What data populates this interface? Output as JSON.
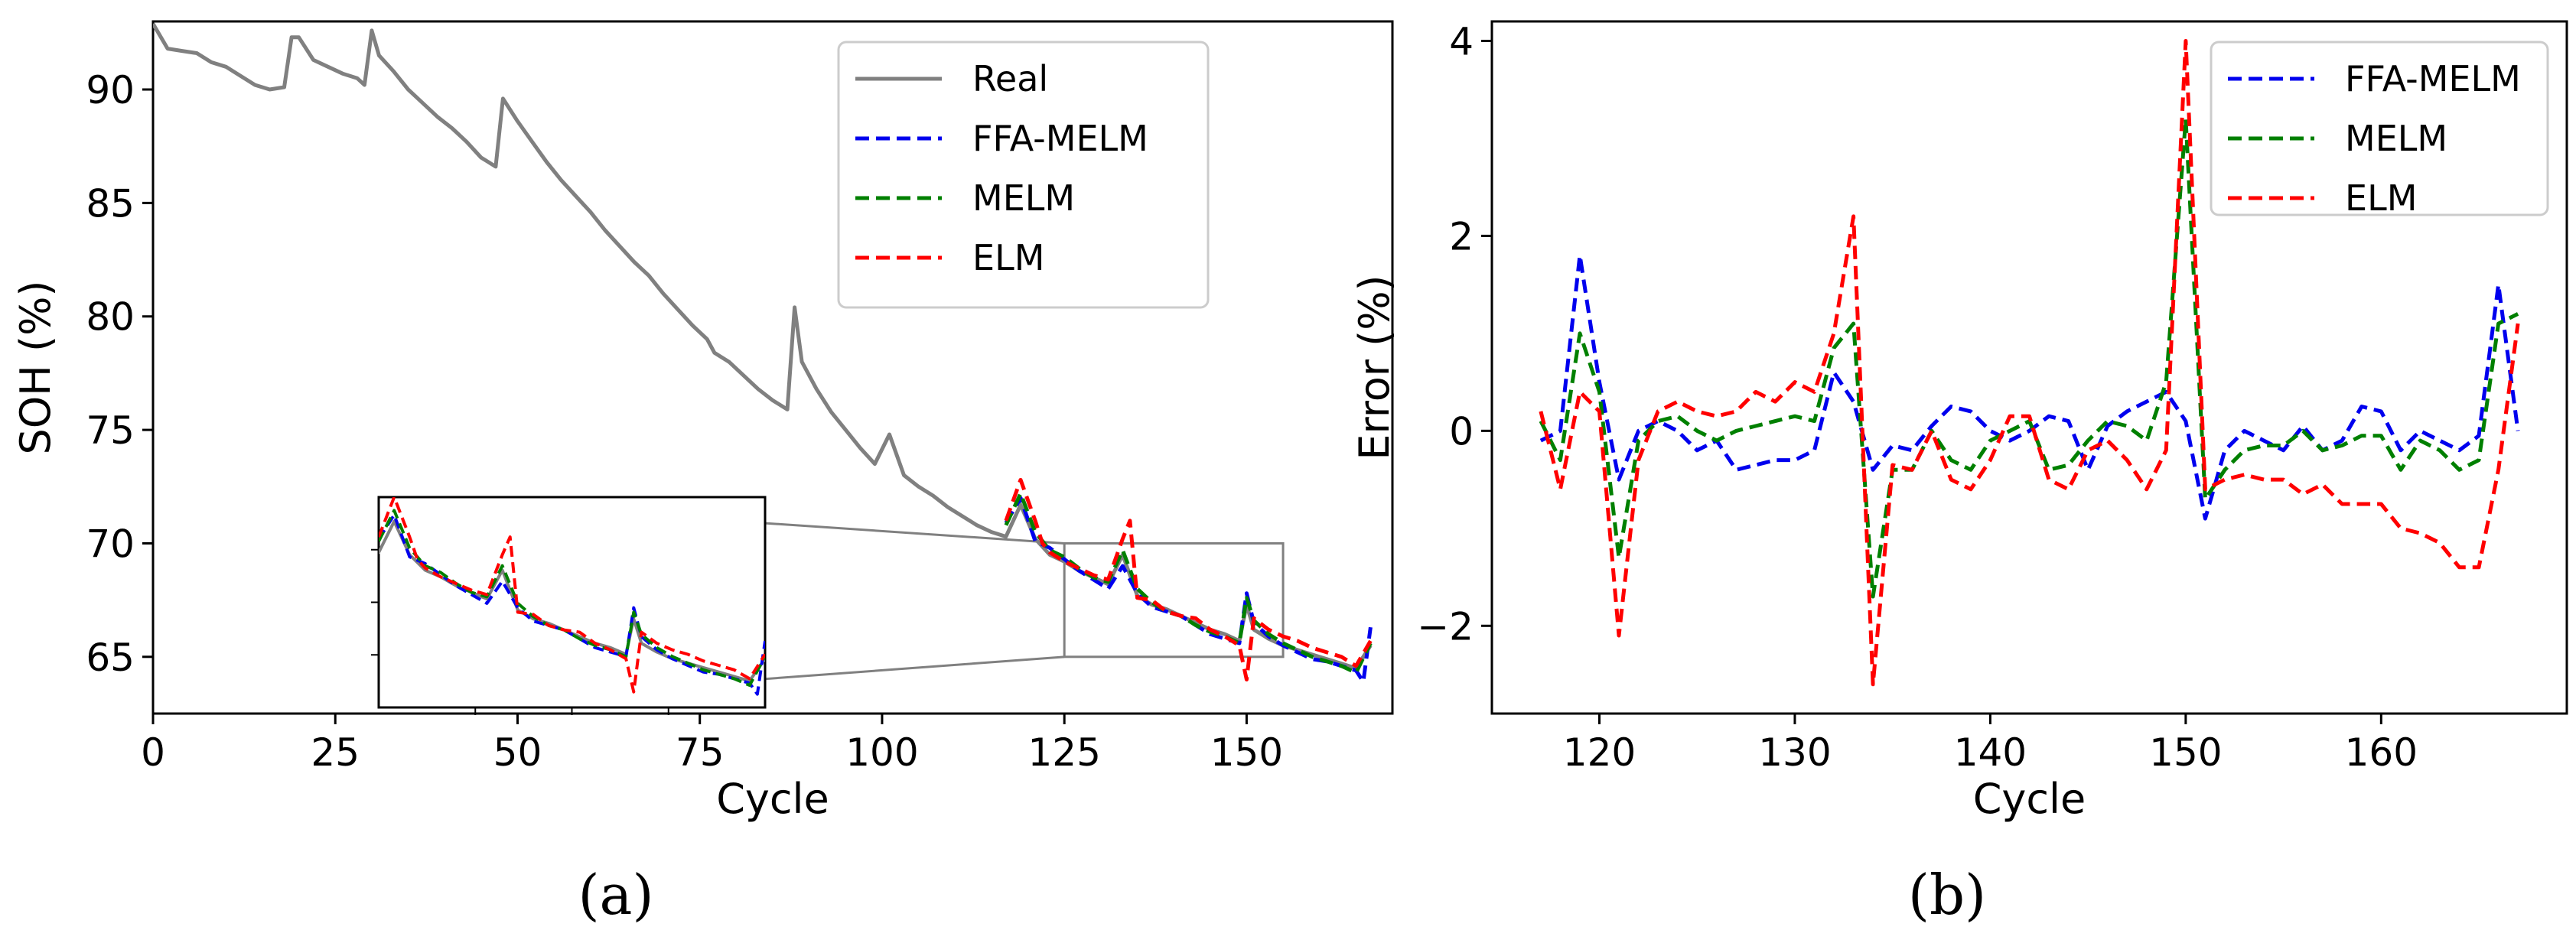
{
  "colors": {
    "real": "#808080",
    "ffa_melm": "#0000ee",
    "melm": "#008000",
    "elm": "#ff0000",
    "axes": "#000000",
    "legend_border": "#cccccc",
    "zoom_box": "#808080"
  },
  "panel_labels": {
    "a": "(a)",
    "b": "(b)"
  },
  "chart_data": [
    {
      "id": "a",
      "type": "line",
      "xlabel": "Cycle",
      "ylabel": "SOH (%)",
      "xlim": [
        0,
        170
      ],
      "ylim": [
        62.5,
        93
      ],
      "xticks": [
        0,
        25,
        50,
        75,
        100,
        125,
        150
      ],
      "xtick_labels": [
        "0",
        "25",
        "50",
        "75",
        "100",
        "125",
        "150"
      ],
      "yticks": [
        65,
        70,
        75,
        80,
        85,
        90
      ],
      "ytick_labels": [
        "65",
        "70",
        "75",
        "80",
        "85",
        "90"
      ],
      "legend": {
        "position": "top-right",
        "entries": [
          "Real",
          "FFA-MELM",
          "MELM",
          "ELM"
        ]
      },
      "zoom_region": {
        "x": [
          125,
          155
        ],
        "y": [
          65,
          70
        ]
      },
      "series": [
        {
          "name": "Real",
          "style": "solid",
          "color_key": "real",
          "x": [
            0,
            2,
            4,
            6,
            8,
            10,
            12,
            14,
            16,
            18,
            19,
            20,
            22,
            24,
            26,
            28,
            29,
            30,
            31,
            33,
            35,
            37,
            39,
            41,
            43,
            45,
            47,
            48,
            50,
            52,
            54,
            56,
            58,
            60,
            62,
            64,
            66,
            68,
            70,
            72,
            74,
            76,
            77,
            79,
            81,
            83,
            85,
            87,
            88,
            89,
            91,
            93,
            95,
            97,
            99,
            101,
            103,
            105,
            107,
            109,
            111,
            113,
            115,
            117,
            119,
            121,
            123,
            125,
            127,
            129,
            131,
            133,
            135,
            137,
            139,
            141,
            143,
            145,
            147,
            149,
            150,
            151,
            153,
            155,
            157,
            159,
            161,
            163,
            165,
            167
          ],
          "values": [
            92.9,
            91.8,
            91.7,
            91.6,
            91.2,
            91.0,
            90.6,
            90.2,
            90.0,
            90.1,
            92.3,
            92.3,
            91.3,
            91.0,
            90.7,
            90.5,
            90.2,
            92.6,
            91.5,
            90.8,
            90.0,
            89.4,
            88.8,
            88.3,
            87.7,
            87.0,
            86.6,
            89.6,
            88.6,
            87.7,
            86.8,
            86.0,
            85.3,
            84.6,
            83.8,
            83.1,
            82.4,
            81.8,
            81.0,
            80.3,
            79.6,
            79.0,
            78.4,
            78.0,
            77.4,
            76.8,
            76.3,
            75.9,
            80.4,
            78.0,
            76.8,
            75.8,
            75.0,
            74.2,
            73.5,
            74.8,
            73.0,
            72.5,
            72.1,
            71.6,
            71.2,
            70.8,
            70.5,
            70.3,
            71.7,
            70.2,
            69.5,
            69.2,
            68.8,
            68.5,
            68.2,
            69.5,
            67.7,
            67.3,
            67.1,
            66.8,
            66.5,
            66.2,
            66.0,
            65.7,
            67.3,
            66.2,
            65.8,
            65.5,
            65.3,
            65.1,
            64.9,
            64.7,
            64.5,
            65.5
          ]
        },
        {
          "name": "FFA-MELM",
          "style": "dashed",
          "color_key": "ffa_melm",
          "x": [
            117,
            119,
            121,
            123,
            125,
            127,
            129,
            131,
            133,
            135,
            137,
            139,
            141,
            143,
            145,
            147,
            149,
            150,
            151,
            153,
            155,
            157,
            159,
            161,
            163,
            165,
            166,
            167
          ],
          "values": [
            70.9,
            72.0,
            70.1,
            69.8,
            69.3,
            68.8,
            68.4,
            68.0,
            69.0,
            67.8,
            67.2,
            67.0,
            66.8,
            66.4,
            66.0,
            65.8,
            65.6,
            67.8,
            66.5,
            65.9,
            65.5,
            65.2,
            64.9,
            64.8,
            64.6,
            64.4,
            63.9,
            66.3
          ]
        },
        {
          "name": "MELM",
          "style": "dashed",
          "color_key": "melm",
          "x": [
            117,
            119,
            121,
            123,
            125,
            127,
            129,
            131,
            133,
            135,
            137,
            139,
            141,
            143,
            145,
            147,
            149,
            150,
            151,
            153,
            155,
            157,
            159,
            161,
            163,
            165,
            167
          ],
          "values": [
            70.8,
            72.2,
            70.5,
            69.7,
            69.4,
            68.9,
            68.5,
            68.3,
            69.7,
            68.0,
            67.4,
            67.0,
            66.8,
            66.4,
            66.1,
            65.9,
            65.6,
            67.6,
            66.6,
            66.0,
            65.6,
            65.3,
            65.0,
            64.8,
            64.6,
            64.3,
            65.6
          ]
        },
        {
          "name": "ELM",
          "style": "dashed",
          "color_key": "elm",
          "x": [
            117,
            119,
            121,
            122,
            123,
            125,
            127,
            129,
            131,
            133,
            134,
            135,
            137,
            139,
            141,
            143,
            145,
            147,
            149,
            150,
            151,
            153,
            155,
            157,
            159,
            161,
            163,
            165,
            167
          ],
          "values": [
            71.0,
            72.8,
            71.0,
            70.0,
            69.6,
            69.2,
            68.9,
            68.6,
            68.4,
            70.2,
            71.0,
            67.6,
            67.5,
            67.0,
            66.8,
            66.7,
            66.2,
            65.9,
            65.5,
            64.0,
            66.7,
            66.2,
            65.9,
            65.7,
            65.4,
            65.2,
            65.0,
            64.6,
            65.7
          ]
        }
      ]
    },
    {
      "id": "b",
      "type": "line",
      "xlabel": "Cycle",
      "ylabel": "Error (%)",
      "xlim": [
        114.5,
        169.5
      ],
      "ylim": [
        -2.9,
        4.2
      ],
      "xticks": [
        120,
        130,
        140,
        150,
        160
      ],
      "xtick_labels": [
        "120",
        "130",
        "140",
        "150",
        "160"
      ],
      "yticks": [
        -2,
        0,
        2,
        4
      ],
      "ytick_labels": [
        "−2",
        "0",
        "2",
        "4"
      ],
      "legend": {
        "position": "top-right",
        "entries": [
          "FFA-MELM",
          "MELM",
          "ELM"
        ]
      },
      "series": [
        {
          "name": "FFA-MELM",
          "style": "dashed",
          "color_key": "ffa_melm",
          "x": [
            117,
            118,
            119,
            120,
            121,
            122,
            123,
            124,
            125,
            126,
            127,
            128,
            129,
            130,
            131,
            132,
            133,
            134,
            135,
            136,
            137,
            138,
            139,
            140,
            141,
            142,
            143,
            144,
            145,
            146,
            147,
            148,
            149,
            150,
            151,
            152,
            153,
            154,
            155,
            156,
            157,
            158,
            159,
            160,
            161,
            162,
            163,
            164,
            165,
            166,
            167
          ],
          "values": [
            -0.1,
            0.0,
            1.8,
            0.5,
            -0.5,
            0.0,
            0.1,
            0.0,
            -0.2,
            -0.1,
            -0.4,
            -0.35,
            -0.3,
            -0.3,
            -0.2,
            0.6,
            0.3,
            -0.4,
            -0.15,
            -0.2,
            0.05,
            0.25,
            0.2,
            0.0,
            -0.1,
            0.0,
            0.15,
            0.1,
            -0.4,
            0.05,
            0.2,
            0.3,
            0.4,
            0.1,
            -0.9,
            -0.2,
            0.0,
            -0.1,
            -0.2,
            0.05,
            -0.2,
            -0.1,
            0.25,
            0.2,
            -0.2,
            0.0,
            -0.1,
            -0.2,
            -0.05,
            1.5,
            0.0
          ]
        },
        {
          "name": "MELM",
          "style": "dashed",
          "color_key": "melm",
          "x": [
            117,
            118,
            119,
            120,
            121,
            122,
            123,
            124,
            125,
            126,
            127,
            128,
            129,
            130,
            131,
            132,
            133,
            134,
            135,
            136,
            137,
            138,
            139,
            140,
            141,
            142,
            143,
            144,
            145,
            146,
            147,
            148,
            149,
            150,
            151,
            152,
            153,
            154,
            155,
            156,
            157,
            158,
            159,
            160,
            161,
            162,
            163,
            164,
            165,
            166,
            167
          ],
          "values": [
            0.1,
            -0.3,
            1.0,
            0.4,
            -1.3,
            -0.1,
            0.1,
            0.15,
            0.0,
            -0.1,
            0.0,
            0.05,
            0.1,
            0.15,
            0.1,
            0.85,
            1.1,
            -1.7,
            -0.4,
            -0.4,
            0.0,
            -0.3,
            -0.4,
            -0.1,
            0.0,
            0.1,
            -0.4,
            -0.35,
            -0.1,
            0.1,
            0.05,
            -0.1,
            0.5,
            3.2,
            -0.7,
            -0.4,
            -0.2,
            -0.15,
            -0.15,
            0.0,
            -0.2,
            -0.15,
            -0.05,
            -0.05,
            -0.4,
            -0.1,
            -0.2,
            -0.4,
            -0.3,
            1.1,
            1.2
          ]
        },
        {
          "name": "ELM",
          "style": "dashed",
          "color_key": "elm",
          "x": [
            117,
            118,
            119,
            120,
            121,
            122,
            123,
            124,
            125,
            126,
            127,
            128,
            129,
            130,
            131,
            132,
            133,
            134,
            135,
            136,
            137,
            138,
            139,
            140,
            141,
            142,
            143,
            144,
            145,
            146,
            147,
            148,
            149,
            150,
            151,
            152,
            153,
            154,
            155,
            156,
            157,
            158,
            159,
            160,
            161,
            162,
            163,
            164,
            165,
            166,
            167
          ],
          "values": [
            0.2,
            -0.6,
            0.4,
            0.2,
            -2.1,
            -0.3,
            0.2,
            0.3,
            0.2,
            0.15,
            0.2,
            0.4,
            0.3,
            0.5,
            0.4,
            1.0,
            2.2,
            -2.6,
            -0.35,
            -0.4,
            0.0,
            -0.5,
            -0.6,
            -0.3,
            0.15,
            0.15,
            -0.5,
            -0.6,
            -0.2,
            -0.1,
            -0.3,
            -0.6,
            -0.2,
            4.0,
            -0.6,
            -0.5,
            -0.45,
            -0.5,
            -0.5,
            -0.65,
            -0.55,
            -0.75,
            -0.75,
            -0.75,
            -1.0,
            -1.05,
            -1.15,
            -1.4,
            -1.4,
            -0.4,
            1.1
          ]
        }
      ]
    }
  ]
}
